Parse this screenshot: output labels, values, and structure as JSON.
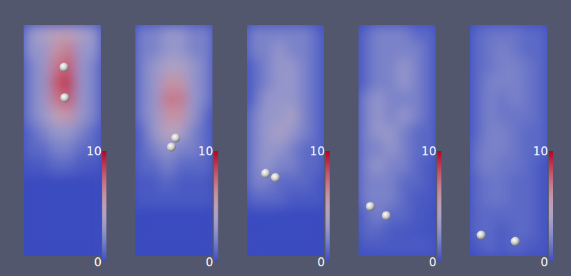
{
  "chart_data": [
    {
      "type": "heatmap",
      "xlim": [
        0,
        6
      ],
      "ylim": [
        14,
        0
      ],
      "tick_labels": false,
      "colorbar": {
        "range": [
          0,
          10
        ],
        "ticks": [
          0,
          10
        ]
      },
      "cells": [
        [
          3,
          4,
          5,
          5,
          4,
          3
        ],
        [
          3,
          3,
          6,
          7,
          3,
          3
        ],
        [
          2,
          3,
          7,
          8,
          3,
          2
        ],
        [
          2,
          3,
          8,
          9,
          3,
          2
        ],
        [
          2,
          3,
          7,
          8,
          3,
          2
        ],
        [
          2,
          3,
          5,
          6,
          3,
          2
        ],
        [
          1,
          2,
          3,
          3,
          2,
          1
        ],
        [
          1,
          1,
          2,
          2,
          1,
          1
        ],
        [
          0.5,
          0.5,
          1,
          1,
          0.5,
          0.5
        ],
        [
          0,
          0,
          0,
          0,
          0,
          0
        ],
        [
          0,
          0,
          0,
          0,
          0,
          0
        ],
        [
          0,
          0,
          0,
          0,
          0,
          0
        ],
        [
          0,
          0,
          0,
          0,
          0,
          0
        ],
        [
          0,
          0,
          0,
          0,
          0,
          0
        ]
      ],
      "particles": [
        {
          "x": 3.14,
          "y": 2.56
        },
        {
          "x": 3.2,
          "y": 4.41
        }
      ]
    },
    {
      "type": "heatmap",
      "xlim": [
        0,
        6
      ],
      "ylim": [
        14,
        0
      ],
      "tick_labels": false,
      "colorbar": {
        "range": [
          0,
          10
        ],
        "ticks": [
          0,
          10
        ]
      },
      "cells": [
        [
          2,
          2,
          3,
          3,
          2,
          2
        ],
        [
          2,
          2,
          3,
          3,
          2,
          2
        ],
        [
          2,
          3,
          4,
          4,
          3,
          2
        ],
        [
          2,
          3,
          6,
          6,
          3,
          2
        ],
        [
          2,
          3,
          7,
          7,
          3,
          2
        ],
        [
          2,
          3,
          6,
          6,
          3,
          1
        ],
        [
          1,
          3,
          5,
          4,
          2,
          1
        ],
        [
          1,
          2,
          3,
          2,
          2,
          1
        ],
        [
          1,
          1,
          2,
          1,
          1,
          1
        ],
        [
          0.5,
          0.5,
          1,
          0.5,
          0.5,
          0.5
        ],
        [
          0.5,
          0.5,
          0.5,
          0.5,
          0.5,
          0.5
        ],
        [
          0,
          0,
          0,
          0,
          0,
          0
        ],
        [
          0,
          0,
          0,
          0,
          0,
          0
        ],
        [
          0,
          0,
          0,
          0,
          0,
          0
        ]
      ],
      "particles": [
        {
          "x": 2.81,
          "y": 7.4
        },
        {
          "x": 3.14,
          "y": 6.85
        }
      ]
    },
    {
      "type": "heatmap",
      "xlim": [
        0,
        6
      ],
      "ylim": [
        14,
        0
      ],
      "tick_labels": false,
      "colorbar": {
        "range": [
          0,
          10
        ],
        "ticks": [
          0,
          10
        ]
      },
      "cells": [
        [
          2,
          2,
          2,
          2,
          2,
          1
        ],
        [
          2,
          2,
          3,
          2,
          2,
          1
        ],
        [
          1,
          2,
          3,
          3,
          2,
          1
        ],
        [
          1,
          2,
          3,
          3,
          2,
          1
        ],
        [
          1,
          3,
          3,
          3,
          2,
          1
        ],
        [
          2,
          3,
          3,
          4,
          2,
          1
        ],
        [
          2,
          3,
          4,
          3,
          2,
          1
        ],
        [
          2,
          3,
          3,
          2,
          1,
          1
        ],
        [
          2,
          3,
          2,
          2,
          1,
          1
        ],
        [
          2,
          2,
          1,
          1,
          1,
          0.5
        ],
        [
          1,
          1,
          1,
          0.5,
          0.5,
          0.5
        ],
        [
          0,
          0,
          0,
          0,
          0,
          0
        ],
        [
          0,
          0,
          0,
          0,
          0,
          0
        ],
        [
          0,
          0,
          0,
          0,
          0,
          0
        ]
      ],
      "particles": [
        {
          "x": 1.46,
          "y": 9.0
        },
        {
          "x": 2.22,
          "y": 9.25
        }
      ]
    },
    {
      "type": "heatmap",
      "xlim": [
        0,
        6
      ],
      "ylim": [
        14,
        0
      ],
      "tick_labels": false,
      "colorbar": {
        "range": [
          0,
          10
        ],
        "ticks": [
          0,
          10
        ]
      },
      "cells": [
        [
          1,
          2,
          2,
          2,
          1,
          1
        ],
        [
          1,
          2,
          2,
          2,
          2,
          1
        ],
        [
          1,
          2,
          2,
          3,
          2,
          1
        ],
        [
          1,
          2,
          2,
          3,
          2,
          1
        ],
        [
          2,
          3,
          2,
          2,
          2,
          1
        ],
        [
          2,
          3,
          2,
          3,
          2,
          1
        ],
        [
          2,
          3,
          3,
          2,
          1,
          1
        ],
        [
          2,
          2,
          3,
          2,
          1,
          1
        ],
        [
          2,
          3,
          2,
          2,
          1,
          0.5
        ],
        [
          2,
          2,
          2,
          1,
          1,
          0.5
        ],
        [
          2,
          2,
          2,
          1,
          0.5,
          0.5
        ],
        [
          1,
          2,
          1,
          1,
          0.5,
          0.3
        ],
        [
          1,
          1,
          0.5,
          0.5,
          0.3,
          0.3
        ],
        [
          0.5,
          0.5,
          0.5,
          0.5,
          0.5,
          0.5
        ]
      ],
      "particles": [
        {
          "x": 0.92,
          "y": 11.0
        },
        {
          "x": 2.16,
          "y": 11.56
        }
      ]
    },
    {
      "type": "heatmap",
      "xlim": [
        0,
        6
      ],
      "ylim": [
        14,
        0
      ],
      "tick_labels": false,
      "colorbar": {
        "range": [
          0,
          10
        ],
        "ticks": [
          0,
          10
        ]
      },
      "cells": [
        [
          1,
          1.5,
          1.5,
          1.5,
          1,
          1
        ],
        [
          1,
          1.5,
          2,
          1.5,
          1,
          1
        ],
        [
          1,
          1.5,
          2,
          2,
          1.5,
          1
        ],
        [
          1,
          2,
          2,
          2,
          1.5,
          1
        ],
        [
          1,
          2,
          1.5,
          2,
          1.5,
          1
        ],
        [
          1,
          2,
          1.5,
          1.5,
          1.5,
          1
        ],
        [
          1,
          2,
          2,
          1.5,
          1,
          1
        ],
        [
          1.5,
          2,
          2,
          1.5,
          1,
          1
        ],
        [
          1.5,
          2,
          1.5,
          1.5,
          1,
          0.5
        ],
        [
          1,
          1.5,
          1.5,
          1,
          1,
          0.5
        ],
        [
          1,
          1.5,
          1.5,
          1,
          1,
          0.5
        ],
        [
          1,
          1,
          1,
          1,
          1,
          0.5
        ],
        [
          1,
          1,
          0.5,
          1,
          1,
          0.5
        ],
        [
          0.5,
          1,
          0.5,
          1,
          0.5,
          0.5
        ]
      ],
      "particles": [
        {
          "x": 0.86,
          "y": 12.74
        },
        {
          "x": 3.51,
          "y": 13.12
        }
      ]
    }
  ]
}
